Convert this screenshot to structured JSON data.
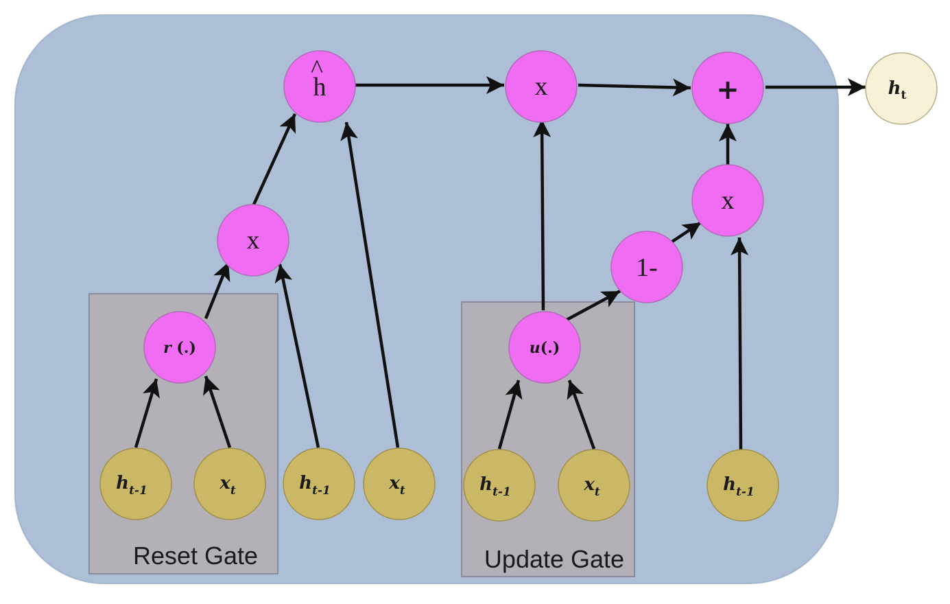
{
  "gates": {
    "reset_label": "Reset Gate",
    "update_label": "Update Gate"
  },
  "nodes": {
    "h_hat": {
      "base": "h",
      "accent": "^"
    },
    "mult_top": "x",
    "plus": "+",
    "mult_right": "x",
    "mult_left": "x",
    "one_minus": "1-",
    "r_fn": {
      "name": "r",
      "args": " (.)"
    },
    "u_fn": {
      "name": "u",
      "args": "(.)"
    },
    "output": {
      "base": "h",
      "sub": "t"
    },
    "inputs": [
      {
        "base": "h",
        "sub": "t-1"
      },
      {
        "base": "x",
        "sub": "t"
      },
      {
        "base": "h",
        "sub": "t-1"
      },
      {
        "base": "x",
        "sub": "t"
      },
      {
        "base": "h",
        "sub": "t-1"
      },
      {
        "base": "x",
        "sub": "t"
      },
      {
        "base": "h",
        "sub": "t-1"
      }
    ]
  },
  "colors": {
    "background_panel": "#adbfd6",
    "gate_box": "#b3b1b7",
    "op_node": "#f06cf3",
    "input_node": "#cbb867",
    "output_node": "#f7f2d7"
  }
}
